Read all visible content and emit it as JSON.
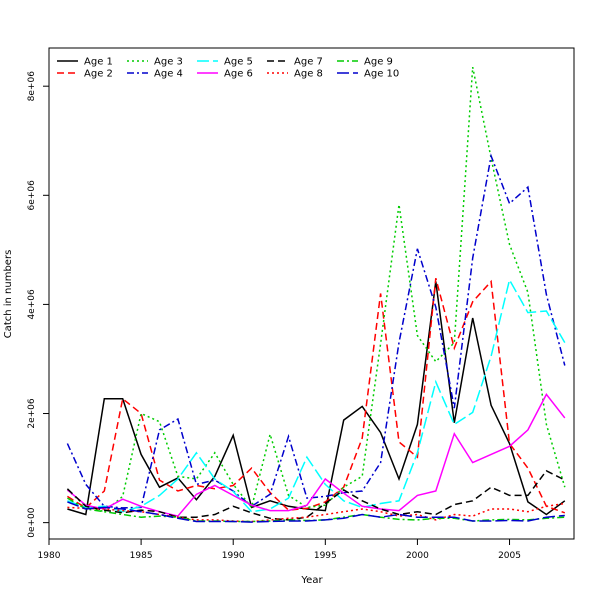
{
  "chart_data": {
    "type": "line",
    "title": "",
    "xlabel": "Year",
    "ylabel": "Catch in numbers",
    "xlim": [
      1980,
      2008.5
    ],
    "ylim": [
      -300000,
      8700000
    ],
    "x_ticks": [
      1980,
      1985,
      1990,
      1995,
      2000,
      2005
    ],
    "y_ticks": [
      0,
      2000000,
      4000000,
      6000000,
      8000000
    ],
    "y_tick_labels": [
      "0e+00",
      "2e+06",
      "4e+06",
      "6e+06",
      "8e+06"
    ],
    "legend_position": "top-left",
    "grid": false,
    "x": [
      1981,
      1982,
      1983,
      1984,
      1985,
      1986,
      1987,
      1988,
      1989,
      1990,
      1991,
      1992,
      1993,
      1994,
      1995,
      1996,
      1997,
      1998,
      1999,
      2000,
      2001,
      2002,
      2003,
      2004,
      2005,
      2006,
      2007,
      2008
    ],
    "series": [
      {
        "name": "Age 1",
        "color": "#000000",
        "dash": "solid",
        "values": [
          250000,
          150000,
          2270000,
          2270000,
          1250000,
          650000,
          820000,
          420000,
          850000,
          1600000,
          280000,
          400000,
          300000,
          250000,
          220000,
          1880000,
          2130000,
          1650000,
          800000,
          1800000,
          4420000,
          1830000,
          3750000,
          2150000,
          1450000,
          380000,
          150000,
          400000
        ]
      },
      {
        "name": "Age 2",
        "color": "#ff0000",
        "dash": "dashed",
        "values": [
          480000,
          270000,
          580000,
          2270000,
          2000000,
          780000,
          580000,
          680000,
          620000,
          680000,
          1000000,
          550000,
          230000,
          260000,
          380000,
          650000,
          1550000,
          4200000,
          1480000,
          1200000,
          4480000,
          3200000,
          4050000,
          4420000,
          1450000,
          1000000,
          300000,
          180000
        ]
      },
      {
        "name": "Age 3",
        "color": "#00cc00",
        "dash": "dotted",
        "values": [
          600000,
          300000,
          200000,
          480000,
          2000000,
          1850000,
          850000,
          800000,
          1280000,
          700000,
          280000,
          1620000,
          500000,
          280000,
          320000,
          650000,
          850000,
          3280000,
          5830000,
          3430000,
          2950000,
          3300000,
          8350000,
          6680000,
          5100000,
          4220000,
          1800000,
          650000
        ]
      },
      {
        "name": "Age 4",
        "color": "#0000cc",
        "dash": "dashdot",
        "values": [
          1450000,
          700000,
          300000,
          270000,
          280000,
          1700000,
          1900000,
          700000,
          780000,
          580000,
          300000,
          520000,
          1580000,
          450000,
          480000,
          550000,
          580000,
          1100000,
          3300000,
          5020000,
          3950000,
          2100000,
          4850000,
          6720000,
          5850000,
          6150000,
          4180000,
          2880000
        ]
      },
      {
        "name": "Age 5",
        "color": "#00ffff",
        "dash": "longdash",
        "values": [
          400000,
          280000,
          300000,
          200000,
          300000,
          500000,
          800000,
          1280000,
          800000,
          570000,
          200000,
          250000,
          450000,
          1200000,
          700000,
          400000,
          280000,
          350000,
          400000,
          1280000,
          2580000,
          1800000,
          2020000,
          3050000,
          4450000,
          3850000,
          3880000,
          3300000
        ]
      },
      {
        "name": "Age 6",
        "color": "#ff00ff",
        "dash": "solid",
        "values": [
          600000,
          320000,
          250000,
          430000,
          300000,
          200000,
          120000,
          520000,
          680000,
          500000,
          320000,
          220000,
          220000,
          320000,
          800000,
          540000,
          300000,
          250000,
          220000,
          500000,
          580000,
          1630000,
          1100000,
          1250000,
          1400000,
          1700000,
          2350000,
          1920000
        ]
      },
      {
        "name": "Age 7",
        "color": "#000000",
        "dash": "dashed",
        "values": [
          620000,
          300000,
          230000,
          180000,
          230000,
          200000,
          100000,
          100000,
          150000,
          300000,
          180000,
          80000,
          50000,
          100000,
          350000,
          600000,
          400000,
          250000,
          150000,
          200000,
          150000,
          330000,
          400000,
          650000,
          500000,
          500000,
          950000,
          780000
        ]
      },
      {
        "name": "Age 8",
        "color": "#ff0000",
        "dash": "dotted",
        "values": [
          280000,
          260000,
          250000,
          220000,
          200000,
          150000,
          100000,
          50000,
          50000,
          30000,
          20000,
          50000,
          80000,
          100000,
          150000,
          200000,
          250000,
          200000,
          120000,
          150000,
          50000,
          150000,
          120000,
          250000,
          250000,
          200000,
          300000,
          350000
        ]
      },
      {
        "name": "Age 9",
        "color": "#00cc00",
        "dash": "dashdot",
        "values": [
          450000,
          250000,
          200000,
          150000,
          100000,
          120000,
          100000,
          30000,
          30000,
          20000,
          20000,
          30000,
          50000,
          40000,
          50000,
          100000,
          150000,
          100000,
          60000,
          50000,
          80000,
          80000,
          30000,
          50000,
          60000,
          50000,
          80000,
          100000
        ]
      },
      {
        "name": "Age 10",
        "color": "#0000cc",
        "dash": "longdash",
        "values": [
          380000,
          250000,
          280000,
          250000,
          200000,
          150000,
          80000,
          20000,
          20000,
          20000,
          10000,
          20000,
          30000,
          30000,
          50000,
          80000,
          150000,
          100000,
          150000,
          100000,
          100000,
          100000,
          30000,
          30000,
          40000,
          30000,
          100000,
          130000
        ]
      }
    ]
  }
}
